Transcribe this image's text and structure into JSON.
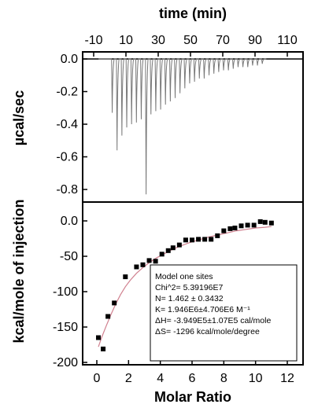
{
  "chart_data": [
    {
      "type": "line",
      "panel": "top",
      "xlabel": "time (min)",
      "ylabel": "µcal/sec",
      "xlim": [
        -10,
        110
      ],
      "ylim": [
        -0.9,
        0.05
      ],
      "x_ticks": [
        "-10",
        "10",
        "30",
        "50",
        "70",
        "90",
        "110"
      ],
      "y_ticks": [
        "0.0",
        "-0.2",
        "-0.4",
        "-0.6",
        "-0.8"
      ],
      "series": [
        {
          "peak_times": [
            1.5,
            4.5,
            7.5,
            10.5,
            13.5,
            16.5,
            19.5,
            22.5,
            25.5,
            28.5,
            31.5,
            34.5,
            37.5,
            40.5,
            43.5,
            46.5,
            49.5,
            52.5,
            55.5,
            58.5,
            61.5,
            64.5,
            67.5,
            70.5,
            73.5,
            76.5,
            79.5,
            82.5,
            85.5,
            88.5,
            91.5,
            94.5
          ],
          "peak_heights": [
            -0.33,
            -0.56,
            -0.47,
            -0.42,
            -0.4,
            -0.39,
            -0.37,
            -0.83,
            -0.34,
            -0.32,
            -0.31,
            -0.28,
            -0.26,
            -0.24,
            -0.21,
            -0.18,
            -0.15,
            -0.14,
            -0.12,
            -0.12,
            -0.1,
            -0.09,
            -0.08,
            -0.07,
            -0.07,
            -0.06,
            -0.05,
            -0.05,
            -0.05,
            -0.04,
            -0.04,
            -0.03
          ]
        }
      ]
    },
    {
      "type": "scatter",
      "panel": "bottom",
      "xlabel": "Molar Ratio",
      "ylabel": "kcal/mole of injection",
      "xlim": [
        -1,
        12
      ],
      "ylim": [
        -205,
        20
      ],
      "x_ticks": [
        "0",
        "2",
        "4",
        "6",
        "8",
        "10",
        "12"
      ],
      "y_ticks": [
        "0.0",
        "-50",
        "-100",
        "-150",
        "-200"
      ],
      "series": [
        {
          "marker": "square",
          "x": [
            0.1,
            0.4,
            0.7,
            1.1,
            1.8,
            2.5,
            2.9,
            3.3,
            3.7,
            4.1,
            4.5,
            4.8,
            5.2,
            5.6,
            6.0,
            6.4,
            6.8,
            7.2,
            7.6,
            8.0,
            8.4,
            8.7,
            9.1,
            9.5,
            9.9,
            10.3,
            10.6,
            11.0
          ],
          "y": [
            -165,
            -181,
            -135,
            -116,
            -79,
            -65,
            -62,
            -56,
            -57,
            -47,
            -42,
            -38,
            -34,
            -27,
            -27,
            -26,
            -26,
            -26,
            -21,
            -14,
            -11,
            -10,
            -7,
            -6,
            -6,
            -1,
            -2,
            -3
          ]
        },
        {
          "style": "line",
          "color": "#d0808f",
          "x": [
            0.1,
            0.3,
            0.6,
            0.9,
            1.2,
            1.5,
            1.8,
            2.1,
            2.5,
            2.9,
            3.3,
            3.7,
            4.2,
            4.7,
            5.2,
            5.8,
            6.4,
            7.0,
            7.6,
            8.2,
            8.8,
            9.4,
            10.0,
            10.6,
            11.0
          ],
          "y": [
            -178,
            -165,
            -148,
            -132,
            -117,
            -104,
            -93,
            -84,
            -74,
            -66,
            -59,
            -53,
            -47,
            -41,
            -36,
            -31,
            -27,
            -23,
            -20,
            -17,
            -14,
            -12,
            -10,
            -9,
            -8
          ]
        }
      ],
      "annotation": [
        "Model one sites",
        "Chi^2= 5.39196E7",
        "N= 1.462 ± 0.3432",
        "K= 1.946E6±4.706E6  M⁻¹",
        "ΔH= -3.949E5±1.07E5 cal/mole",
        "ΔS= -1296  kcal/mole/degree"
      ]
    }
  ]
}
